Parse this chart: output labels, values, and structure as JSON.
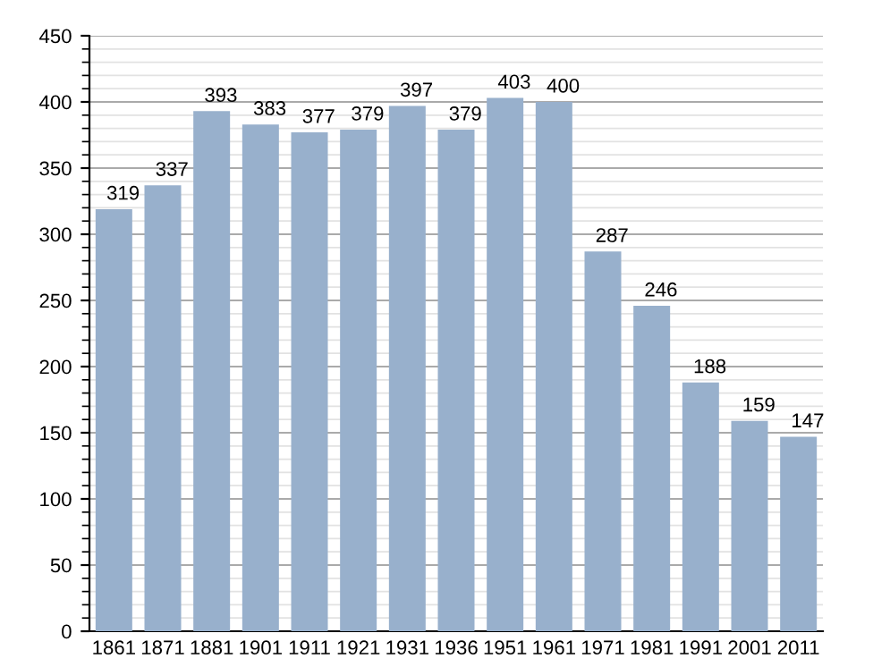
{
  "chart_data": {
    "type": "bar",
    "categories": [
      "1861",
      "1871",
      "1881",
      "1901",
      "1911",
      "1921",
      "1931",
      "1936",
      "1951",
      "1961",
      "1971",
      "1981",
      "1991",
      "2001",
      "2011"
    ],
    "values": [
      319,
      337,
      393,
      383,
      377,
      379,
      397,
      379,
      403,
      400,
      287,
      246,
      188,
      159,
      147
    ],
    "color": "#98b0cc",
    "ylim": [
      0,
      450
    ],
    "yticks": [
      0,
      50,
      100,
      150,
      200,
      250,
      300,
      350,
      400,
      450
    ],
    "grid": "y",
    "data_labels": true
  }
}
